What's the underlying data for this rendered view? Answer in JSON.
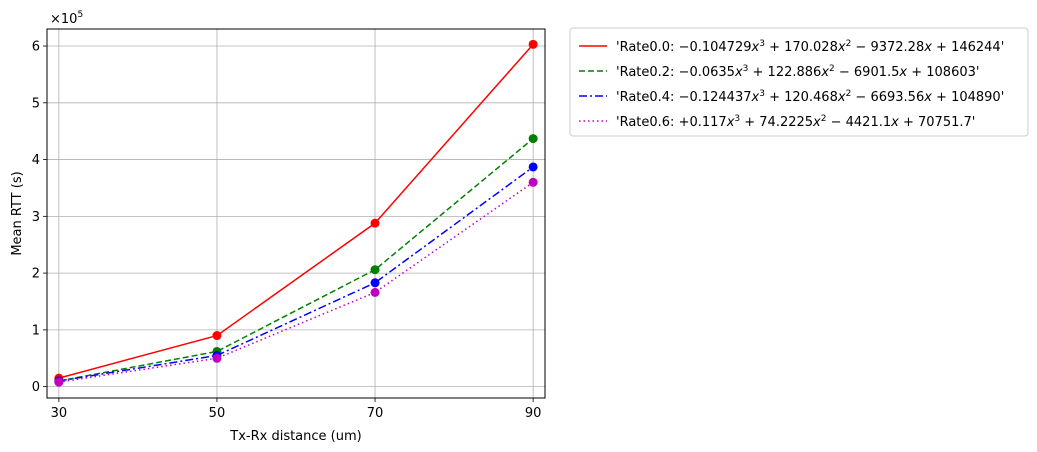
{
  "chart_data": {
    "type": "line",
    "xlabel": "Tx-Rx distance (um)",
    "ylabel": "Mean RTT (s)",
    "y_scale_label": {
      "base": "×10",
      "exp": "5"
    },
    "x": [
      30,
      50,
      70,
      90
    ],
    "x_ticks": [
      "30",
      "50",
      "70",
      "90"
    ],
    "y_ticks": [
      "0",
      "1",
      "2",
      "3",
      "4",
      "5",
      "6"
    ],
    "xlim": [
      28.5,
      91.5
    ],
    "ylim": [
      -0.2,
      6.3
    ],
    "grid": true,
    "legend_position": "outside-right-top",
    "series": [
      {
        "name": "'Rate0.0: −0.104729x³ + 170.028x² − 9372.28x + 146244'",
        "legend_parts": [
          "'Rate0.0: −0.104729",
          "x",
          "3",
          " + 170.028",
          "x",
          "2",
          " − 9372.28",
          "x",
          " + 146244'"
        ],
        "values": [
          0.15,
          0.9,
          2.88,
          6.03
        ],
        "color": "#ff0000",
        "dash": "solid"
      },
      {
        "name": "'Rate0.2: −0.0635x³ + 122.886x² − 6901.5x + 108603'",
        "legend_parts": [
          "'Rate0.2: −0.0635",
          "x",
          "3",
          " + 122.886",
          "x",
          "2",
          " − 6901.5",
          "x",
          " + 108603'"
        ],
        "values": [
          0.1,
          0.62,
          2.06,
          4.37
        ],
        "color": "#008000",
        "dash": "dashed"
      },
      {
        "name": "'Rate0.4: −0.124437x³ + 120.468x² − 6693.56x + 104890'",
        "legend_parts": [
          "'Rate0.4: −0.124437",
          "x",
          "3",
          " + 120.468",
          "x",
          "2",
          " − 6693.56",
          "x",
          " + 104890'"
        ],
        "values": [
          0.1,
          0.55,
          1.83,
          3.87
        ],
        "color": "#0000ff",
        "dash": "dashdot"
      },
      {
        "name": "'Rate0.6: +0.117x³ + 74.2225x² − 4421.1x + 70751.7'",
        "legend_parts": [
          "'Rate0.6: +0.117",
          "x",
          "3",
          " + 74.2225",
          "x",
          "2",
          " − 4421.1",
          "x",
          " + 70751.7'"
        ],
        "values": [
          0.08,
          0.5,
          1.66,
          3.6
        ],
        "color": "#bf00bf",
        "dash": "dotted"
      }
    ]
  }
}
